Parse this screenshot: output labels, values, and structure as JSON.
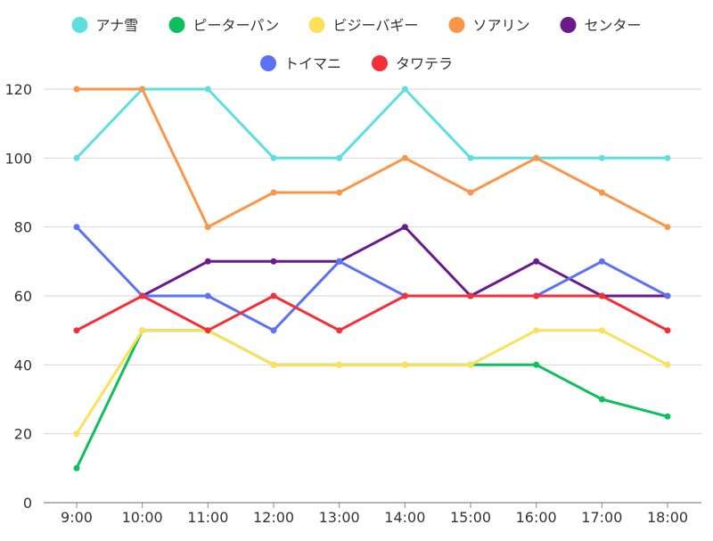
{
  "chart_data": {
    "type": "line",
    "title": "",
    "xlabel": "",
    "ylabel": "",
    "categories": [
      "9:00",
      "10:00",
      "11:00",
      "12:00",
      "13:00",
      "14:00",
      "15:00",
      "16:00",
      "17:00",
      "18:00"
    ],
    "ylim": [
      0,
      120
    ],
    "yticks": [
      0,
      20,
      40,
      60,
      80,
      100,
      120
    ],
    "grid": true,
    "legend_position": "top",
    "series": [
      {
        "name": "アナ雪",
        "color": "#5ddfe0",
        "values": [
          100,
          120,
          120,
          100,
          100,
          120,
          100,
          100,
          100,
          100
        ]
      },
      {
        "name": "ピーターパン",
        "color": "#0fbf5e",
        "values": [
          10,
          50,
          50,
          40,
          40,
          40,
          40,
          40,
          30,
          25
        ]
      },
      {
        "name": "ビジーバギー",
        "color": "#fbe05a",
        "values": [
          20,
          50,
          50,
          40,
          40,
          40,
          40,
          50,
          50,
          40
        ]
      },
      {
        "name": "ソアリン",
        "color": "#fb9648",
        "values": [
          120,
          120,
          80,
          90,
          90,
          100,
          90,
          100,
          90,
          80
        ]
      },
      {
        "name": "センター",
        "color": "#6a1a8c",
        "values": [
          null,
          60,
          70,
          70,
          70,
          80,
          60,
          70,
          60,
          60
        ]
      },
      {
        "name": "トイマニ",
        "color": "#5b72f4",
        "values": [
          80,
          60,
          60,
          50,
          70,
          60,
          60,
          60,
          70,
          60
        ]
      },
      {
        "name": "タワテラ",
        "color": "#f42f37",
        "values": [
          50,
          60,
          50,
          60,
          50,
          60,
          60,
          60,
          60,
          50
        ]
      }
    ]
  }
}
